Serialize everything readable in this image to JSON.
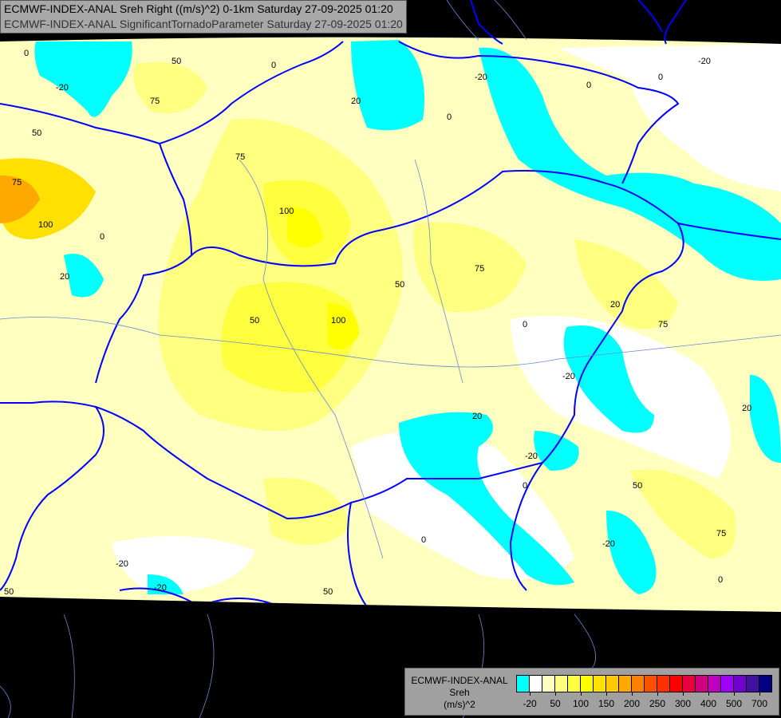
{
  "title": {
    "line1": "ECMWF-INDEX-ANAL Sreh Right ((m/s)^2) 0-1km Saturday 27-09-2025 01:20",
    "line2": "ECMWF-INDEX-ANAL SignificantTornadoParameter Saturday 27-09-2025 01:20"
  },
  "legend": {
    "model": "ECMWF-INDEX-ANAL",
    "variable": "Sreh",
    "unit": "(m/s)^2",
    "colors": [
      "#00ffff",
      "#ffffff",
      "#ffffc0",
      "#ffff80",
      "#ffff40",
      "#ffff00",
      "#ffe000",
      "#ffc800",
      "#ffa800",
      "#ff8000",
      "#ff5000",
      "#ff3000",
      "#ff0000",
      "#e80040",
      "#d00080",
      "#c000c0",
      "#a000ff",
      "#7000d0",
      "#4010a0",
      "#000080"
    ],
    "ticks": [
      {
        "label": "-20",
        "boundary": 1
      },
      {
        "label": "50",
        "boundary": 3
      },
      {
        "label": "100",
        "boundary": 5
      },
      {
        "label": "150",
        "boundary": 7
      },
      {
        "label": "200",
        "boundary": 9
      },
      {
        "label": "250",
        "boundary": 11
      },
      {
        "label": "300",
        "boundary": 13
      },
      {
        "label": "400",
        "boundary": 15
      },
      {
        "label": "500",
        "boundary": 17
      },
      {
        "label": "700",
        "boundary": 19
      }
    ]
  },
  "contour_labels": [
    "50",
    "75",
    "-20",
    "0",
    "75",
    "100",
    "0",
    "20",
    "0",
    "-20",
    "0",
    "0",
    "20",
    "75",
    "100",
    "50",
    "75",
    "100",
    "50",
    "0",
    "-20",
    "20",
    "75",
    "-20",
    "20",
    "-20",
    "20",
    "-20",
    "50",
    "0",
    "50",
    "75",
    "-20",
    "0",
    "50",
    "0",
    "50",
    "-20",
    "0"
  ]
}
